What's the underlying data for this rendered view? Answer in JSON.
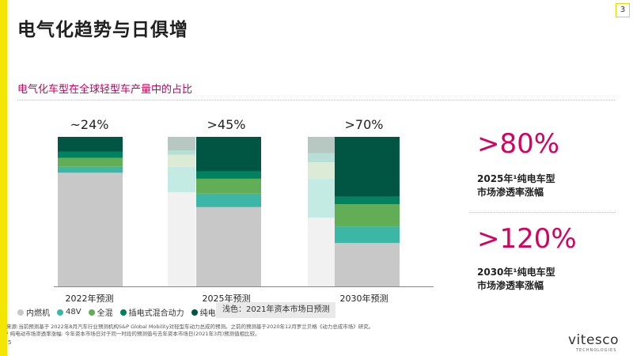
{
  "page": {
    "number": "3",
    "title": "电气化趋势与日俱增",
    "subtitle": "电气化车型在全球轻型车产量中的占比",
    "footnote_line1": "来源:当前预测基于 2022年8月汽车行业预测机构S&P Global Mobility对轻型车动力总成的预测。之前的预测基于2020年12月罗兰贝格《动力总成市场》研究。",
    "footnote_line2": "¹ 纯电动市场渗透率涨幅: 今年资本市场日对于同一时段的预测值与去年资本市场日(2021年3月)预测值相比较。",
    "slide_number": "5",
    "logo": "vitesco",
    "logo_sub": "TECHNOLOGIES"
  },
  "kpis": [
    {
      "value": ">80%",
      "line1": "2025年¹纯电车型",
      "line2": "市场渗透率涨幅"
    },
    {
      "value": ">120%",
      "line1": "2030年¹纯电车型",
      "line2": "市场渗透率涨幅"
    }
  ],
  "legend_note": "浅色：2021年资本市场日预测",
  "colors": {
    "ice": "#c8c8c8",
    "v48": "#3db7a5",
    "full_hybrid": "#62ae57",
    "phev": "#00815f",
    "bev": "#005643",
    "ice_light": "#f1f1f1",
    "v48_light": "#c4ebe3",
    "full_hybrid_light": "#dcebd5",
    "phev_light": "#b7dfd5",
    "bev_light": "#b7c8c3",
    "brand_magenta": "#d6005f",
    "accent_yellow": "#f4e600"
  },
  "chart_data": {
    "type": "bar",
    "stacked": true,
    "unit": "%",
    "categories": [
      "2022年预测",
      "2025年预测",
      "2030年预测"
    ],
    "totals_labels": [
      "~24%",
      ">45%",
      ">70%"
    ],
    "series": [
      {
        "name": "内燃机",
        "color_key": "ice",
        "values": [
          76,
          53,
          29
        ]
      },
      {
        "name": "48V",
        "color_key": "v48",
        "values": [
          4,
          9,
          11
        ]
      },
      {
        "name": "全混",
        "color_key": "full_hybrid",
        "values": [
          6,
          10,
          15
        ]
      },
      {
        "name": "插电式混合动力",
        "color_key": "phev",
        "values": [
          4,
          5,
          5
        ]
      },
      {
        "name": "纯电",
        "color_key": "bev",
        "values": [
          10,
          23,
          40
        ]
      }
    ],
    "previous_forecast": {
      "label": "浅色：2021年资本市场日预测",
      "categories": [
        "2025年预测",
        "2030年预测"
      ],
      "series": [
        {
          "name": "内燃机",
          "color_key": "ice_light",
          "values": [
            63,
            46
          ]
        },
        {
          "name": "48V",
          "color_key": "v48_light",
          "values": [
            17,
            26
          ]
        },
        {
          "name": "全混",
          "color_key": "full_hybrid_light",
          "values": [
            8,
            11
          ]
        },
        {
          "name": "插电式混合动力",
          "color_key": "phev_light",
          "values": [
            3,
            6
          ]
        },
        {
          "name": "纯电",
          "color_key": "bev_light",
          "values": [
            9,
            11
          ]
        }
      ]
    },
    "ylim": [
      0,
      100
    ],
    "grid": false,
    "legend_position": "bottom-left"
  }
}
